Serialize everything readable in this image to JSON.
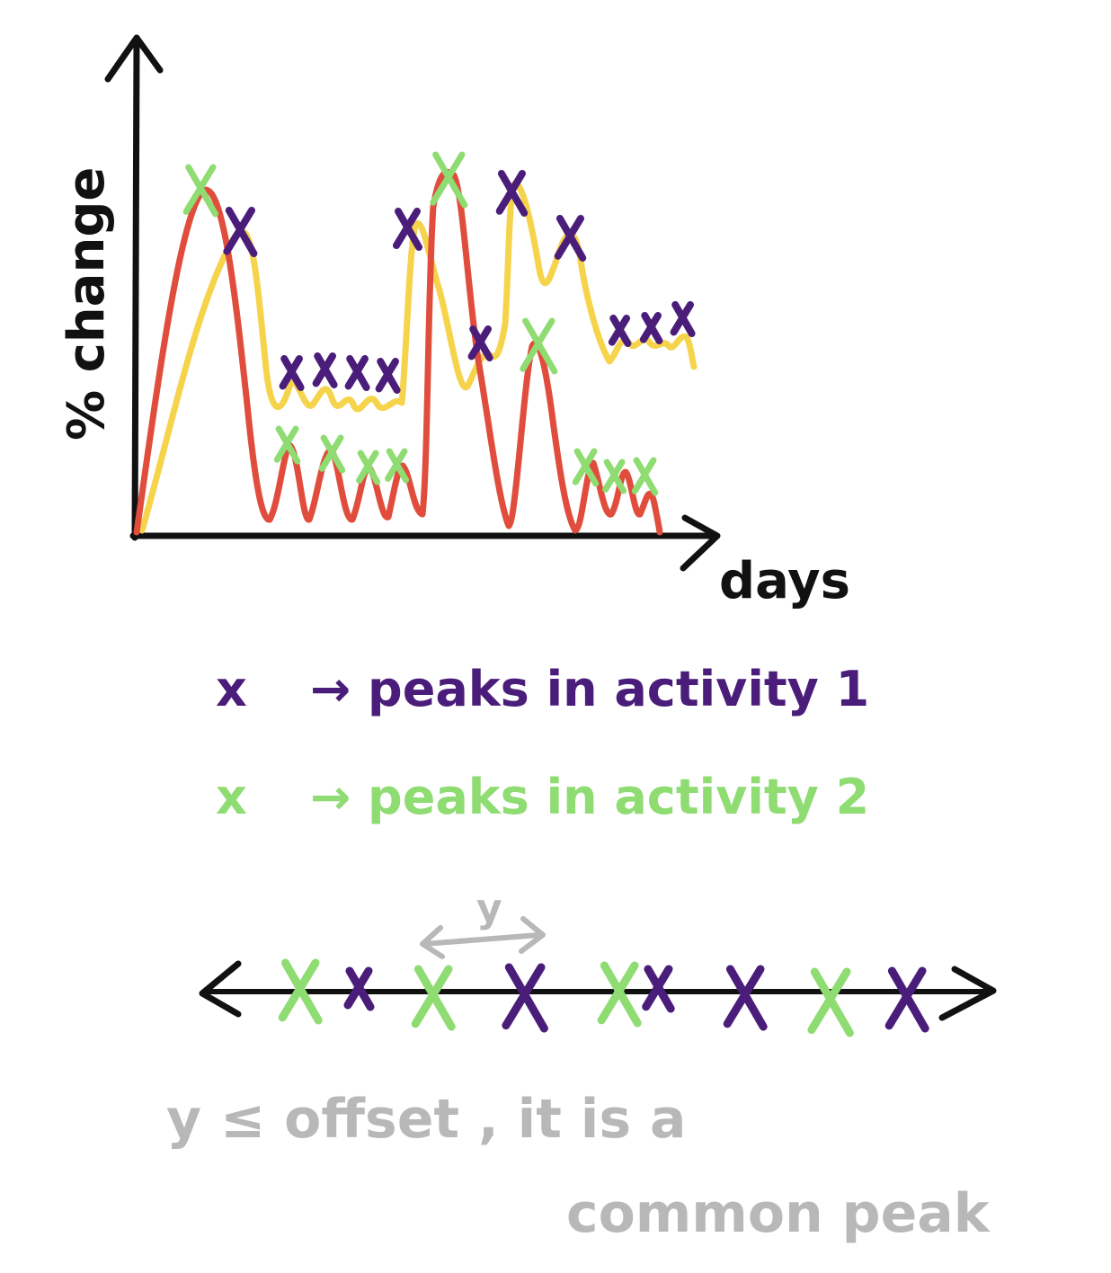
{
  "colors": {
    "axis": "#111111",
    "activity1_line": "#f5d44c",
    "activity2_line": "#e04d3c",
    "activity1_marker": "#4b1d7a",
    "activity2_marker": "#8fdc72",
    "note": "#b8b8b8"
  },
  "chart": {
    "y_axis_label": "% change",
    "x_axis_label": "days"
  },
  "chart_data": {
    "type": "line",
    "xlabel": "days",
    "ylabel": "% change",
    "grid": false,
    "series": [
      {
        "line_color": "#f5d44c",
        "marker_color": "#4b1d7a"
      },
      {
        "line_color": "#e04d3c",
        "marker_color": "#8fdc72"
      }
    ]
  },
  "legend": {
    "activity1": {
      "symbol": "x",
      "text": "→ peaks in activity 1"
    },
    "activity2": {
      "symbol": "x",
      "text": "→ peaks in activity 2"
    }
  },
  "timeline": {
    "gap_label": "y",
    "note_line1": "y ≤ offset , it is a",
    "note_line2": "common peak"
  }
}
